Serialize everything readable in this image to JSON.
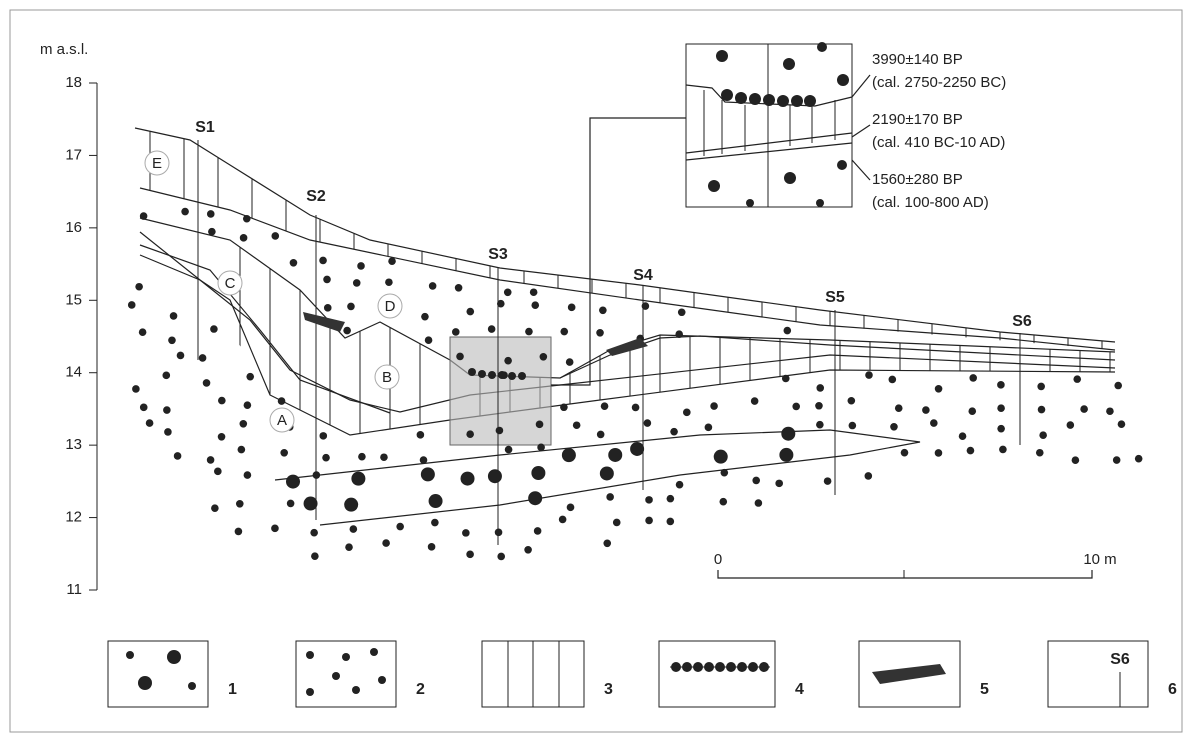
{
  "axis": {
    "unit": "m a.s.l.",
    "ticks": [
      18,
      17,
      16,
      15,
      14,
      13,
      12,
      11
    ]
  },
  "sections": [
    "S1",
    "S2",
    "S3",
    "S4",
    "S5",
    "S6"
  ],
  "units": [
    "A",
    "B",
    "C",
    "D",
    "E"
  ],
  "dates": [
    {
      "age": "3990±140 BP",
      "cal": "(cal. 2750-2250 BC)"
    },
    {
      "age": "2190±170 BP",
      "cal": "(cal. 410 BC-10 AD)"
    },
    {
      "age": "1560±280 BP",
      "cal": "(cal. 100-800 AD)"
    }
  ],
  "scale": {
    "start": "0",
    "end": "10 m"
  },
  "legend": [
    "1",
    "2",
    "3",
    "4",
    "5",
    "6"
  ],
  "legend_sample": "S6"
}
